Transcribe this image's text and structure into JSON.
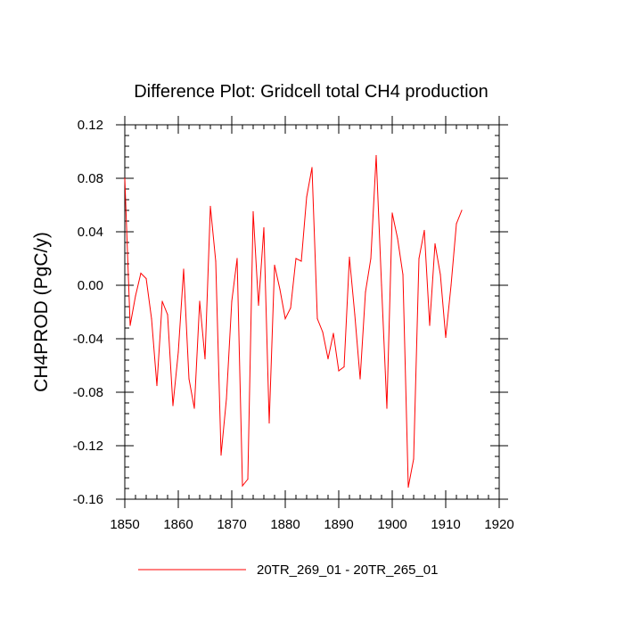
{
  "chart_data": {
    "type": "line",
    "title": "Difference Plot: Gridcell total CH4 production",
    "xlabel": "",
    "ylabel": "CH4PROD  (PgC/y)",
    "xlim": [
      1850,
      1920
    ],
    "ylim": [
      -0.16,
      0.12
    ],
    "x_ticks": [
      1850,
      1860,
      1870,
      1880,
      1890,
      1900,
      1910,
      1920
    ],
    "x_tick_labels": [
      "1850",
      "1860",
      "1870",
      "1880",
      "1890",
      "1900",
      "1910",
      "1920"
    ],
    "y_ticks": [
      0.12,
      0.08,
      0.04,
      0.0,
      -0.04,
      -0.08,
      -0.12,
      -0.16
    ],
    "y_tick_labels": [
      "0.12",
      "0.08",
      "0.04",
      "0.00",
      "-0.04",
      "-0.08",
      "-0.12",
      "-0.16"
    ],
    "x_minor_step": 2,
    "y_minor_step": 0.008,
    "grid": false,
    "legend_position": "bottom-center",
    "series": [
      {
        "name": "20TR_269_01 - 20TR_265_01",
        "color": "#ff0000",
        "x": [
          1850,
          1851,
          1852,
          1853,
          1854,
          1855,
          1856,
          1857,
          1858,
          1859,
          1860,
          1861,
          1862,
          1863,
          1864,
          1865,
          1866,
          1867,
          1868,
          1869,
          1870,
          1871,
          1872,
          1873,
          1874,
          1875,
          1876,
          1877,
          1878,
          1879,
          1880,
          1881,
          1882,
          1883,
          1884,
          1885,
          1886,
          1887,
          1888,
          1889,
          1890,
          1891,
          1892,
          1893,
          1894,
          1895,
          1896,
          1897,
          1898,
          1899,
          1900,
          1901,
          1902,
          1903,
          1904,
          1905,
          1906,
          1907,
          1908,
          1909,
          1910,
          1911,
          1912,
          1913
        ],
        "values": [
          0.08,
          -0.03,
          -0.008,
          0.009,
          0.005,
          -0.025,
          -0.075,
          -0.012,
          -0.022,
          -0.09,
          -0.05,
          0.012,
          -0.07,
          -0.092,
          -0.012,
          -0.055,
          0.059,
          0.018,
          -0.127,
          -0.085,
          -0.012,
          0.02,
          -0.15,
          -0.145,
          0.055,
          -0.015,
          0.043,
          -0.103,
          0.015,
          -0.003,
          -0.025,
          -0.017,
          0.02,
          0.018,
          0.066,
          0.088,
          -0.025,
          -0.035,
          -0.055,
          -0.036,
          -0.064,
          -0.061,
          0.021,
          -0.022,
          -0.07,
          -0.005,
          0.02,
          0.097,
          0.0,
          -0.092,
          0.054,
          0.035,
          0.008,
          -0.151,
          -0.13,
          0.02,
          0.041,
          -0.03,
          0.031,
          0.008,
          -0.039,
          0.0,
          0.046,
          0.056
        ]
      }
    ]
  }
}
